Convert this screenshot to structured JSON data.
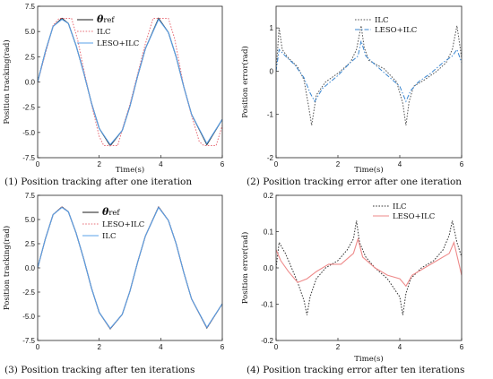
{
  "chart_data": [
    {
      "type": "line",
      "caption": "(1) Position tracking after one iteration",
      "xlabel": "Time(s)",
      "ylabel": "Position tracking(rad)",
      "xlim": [
        0,
        6
      ],
      "ylim": [
        -7.5,
        7.5
      ],
      "xticks": [
        "0",
        "2",
        "4",
        "6"
      ],
      "yticks": [
        "7.5",
        "5.0",
        "2.5",
        "0.0",
        "-2.5",
        "-5.0",
        "-7.5"
      ],
      "legend_position": "top-right",
      "series": [
        {
          "name": "θref",
          "color": "#1a1a1a",
          "style": "solid",
          "x": [
            0,
            0.25,
            0.5,
            0.79,
            1.0,
            1.25,
            1.5,
            1.75,
            2.0,
            2.36,
            2.75,
            3.0,
            3.25,
            3.5,
            3.93,
            4.25,
            4.5,
            4.75,
            5.0,
            5.5,
            6.0
          ],
          "y": [
            0,
            3.0,
            5.5,
            6.3,
            5.8,
            3.6,
            0.9,
            -2.1,
            -4.6,
            -6.3,
            -4.8,
            -2.4,
            0.6,
            3.3,
            6.3,
            4.9,
            2.5,
            -0.5,
            -3.2,
            -6.2,
            -3.7
          ]
        },
        {
          "name": "ILC",
          "color": "#e8707a",
          "style": "dotted",
          "x": [
            0,
            0.25,
            0.5,
            0.7,
            1.1,
            1.3,
            1.5,
            1.75,
            2.0,
            2.15,
            2.6,
            2.8,
            3.0,
            3.25,
            3.5,
            3.75,
            4.25,
            4.45,
            4.75,
            5.0,
            5.25,
            5.4,
            5.8,
            6.0
          ],
          "y": [
            0,
            2.8,
            5.6,
            6.3,
            6.3,
            4.2,
            1.2,
            -2.2,
            -5.4,
            -6.3,
            -6.3,
            -4.2,
            -2.2,
            0.8,
            3.8,
            6.3,
            6.3,
            4.3,
            -0.5,
            -3.3,
            -5.9,
            -6.3,
            -6.3,
            -4.3
          ]
        },
        {
          "name": "LESO+ILC",
          "color": "#5aa0e8",
          "style": "solid",
          "x": [
            0,
            0.25,
            0.5,
            0.79,
            1.0,
            1.25,
            1.5,
            1.75,
            2.0,
            2.36,
            2.75,
            3.0,
            3.25,
            3.5,
            3.93,
            4.25,
            4.5,
            4.75,
            5.0,
            5.5,
            6.0
          ],
          "y": [
            0,
            3.0,
            5.5,
            6.2,
            5.8,
            3.6,
            0.9,
            -2.1,
            -4.6,
            -6.2,
            -4.8,
            -2.4,
            0.6,
            3.3,
            6.2,
            4.9,
            2.5,
            -0.5,
            -3.2,
            -6.1,
            -3.7
          ]
        }
      ]
    },
    {
      "type": "line",
      "caption": "(2) Position tracking error after one iteration",
      "xlabel": "Time(s)",
      "ylabel": "Position error(rad)",
      "xlim": [
        0,
        6
      ],
      "ylim": [
        -2,
        1.5
      ],
      "xticks": [
        "0",
        "2",
        "4",
        "6"
      ],
      "yticks": [
        "1",
        "0",
        "-1",
        "-2"
      ],
      "legend_position": "top-right",
      "series": [
        {
          "name": "ILC",
          "color": "#555555",
          "style": "dotted",
          "x": [
            0,
            0.1,
            0.2,
            0.4,
            0.7,
            0.9,
            1.05,
            1.15,
            1.3,
            1.6,
            2.0,
            2.4,
            2.6,
            2.75,
            2.85,
            3.0,
            3.5,
            3.9,
            4.1,
            4.2,
            4.3,
            4.45,
            4.8,
            5.2,
            5.5,
            5.7,
            5.85,
            5.95,
            6.0
          ],
          "y": [
            0,
            1.0,
            0.5,
            0.3,
            0.1,
            -0.2,
            -0.8,
            -1.25,
            -0.55,
            -0.25,
            -0.05,
            0.2,
            0.5,
            1.05,
            0.55,
            0.25,
            0.05,
            -0.25,
            -0.75,
            -1.25,
            -0.7,
            -0.35,
            -0.2,
            0.0,
            0.2,
            0.5,
            1.05,
            0.55,
            0.3
          ]
        },
        {
          "name": "LESO+ILC",
          "color": "#3a86d0",
          "style": "dashdot",
          "x": [
            0,
            0.1,
            0.3,
            0.6,
            0.9,
            1.1,
            1.25,
            1.5,
            2.0,
            2.4,
            2.65,
            2.75,
            2.9,
            3.2,
            3.6,
            4.0,
            4.2,
            4.35,
            4.6,
            5.0,
            5.4,
            5.7,
            5.85,
            6.0
          ],
          "y": [
            0,
            0.5,
            0.35,
            0.15,
            -0.15,
            -0.5,
            -0.7,
            -0.4,
            -0.1,
            0.2,
            0.35,
            0.7,
            0.35,
            0.15,
            -0.1,
            -0.35,
            -0.7,
            -0.45,
            -0.25,
            -0.05,
            0.2,
            0.35,
            0.5,
            0.2
          ]
        }
      ]
    },
    {
      "type": "line",
      "caption": "(3) Position tracking after ten iterations",
      "xlabel": "",
      "ylabel": "Position tracking(rad)",
      "xlim": [
        0,
        6
      ],
      "ylim": [
        -7.5,
        7.5
      ],
      "xticks": [
        "0",
        "2",
        "4",
        "6"
      ],
      "yticks": [
        "7.5",
        "5.0",
        "2.5",
        "0.0",
        "-2.5",
        "-5.0",
        "-7.5"
      ],
      "legend_position": "center-right",
      "series": [
        {
          "name": "θref",
          "color": "#1a1a1a",
          "style": "solid",
          "x": [
            0,
            0.25,
            0.5,
            0.79,
            1.0,
            1.25,
            1.5,
            1.75,
            2.0,
            2.36,
            2.75,
            3.0,
            3.25,
            3.5,
            3.93,
            4.25,
            4.5,
            4.75,
            5.0,
            5.5,
            6.0
          ],
          "y": [
            0,
            3.0,
            5.5,
            6.3,
            5.8,
            3.6,
            0.9,
            -2.1,
            -4.6,
            -6.3,
            -4.8,
            -2.4,
            0.6,
            3.3,
            6.3,
            4.9,
            2.5,
            -0.5,
            -3.2,
            -6.2,
            -3.7
          ]
        },
        {
          "name": "LESO+ILC",
          "color": "#e8707a",
          "style": "dotted",
          "x": [
            0,
            0.25,
            0.5,
            0.79,
            1.0,
            1.25,
            1.5,
            1.75,
            2.0,
            2.36,
            2.75,
            3.0,
            3.25,
            3.5,
            3.93,
            4.25,
            4.5,
            4.75,
            5.0,
            5.5,
            6.0
          ],
          "y": [
            0,
            3.0,
            5.5,
            6.3,
            5.8,
            3.6,
            0.9,
            -2.1,
            -4.6,
            -6.3,
            -4.8,
            -2.4,
            0.6,
            3.3,
            6.3,
            4.9,
            2.5,
            -0.5,
            -3.2,
            -6.2,
            -3.7
          ]
        },
        {
          "name": "ILC",
          "color": "#5aa0e8",
          "style": "solid",
          "x": [
            0,
            0.25,
            0.5,
            0.79,
            1.0,
            1.25,
            1.5,
            1.75,
            2.0,
            2.36,
            2.75,
            3.0,
            3.25,
            3.5,
            3.93,
            4.25,
            4.5,
            4.75,
            5.0,
            5.5,
            6.0
          ],
          "y": [
            0,
            3.0,
            5.5,
            6.25,
            5.8,
            3.6,
            0.9,
            -2.1,
            -4.6,
            -6.25,
            -4.8,
            -2.4,
            0.6,
            3.3,
            6.25,
            4.9,
            2.5,
            -0.5,
            -3.2,
            -6.15,
            -3.7
          ]
        }
      ]
    },
    {
      "type": "line",
      "caption": "(4) Position tracking error after ten iterations",
      "xlabel": "Time(s)",
      "ylabel": "Position error(rad)",
      "xlim": [
        0,
        6
      ],
      "ylim": [
        -0.2,
        0.2
      ],
      "xticks": [
        "0",
        "2",
        "4",
        "6"
      ],
      "yticks": [
        "0.2",
        "0.1",
        "0.0",
        "-0.1",
        "-0.2"
      ],
      "legend_position": "top-right",
      "series": [
        {
          "name": "ILC",
          "color": "#333333",
          "style": "dotted",
          "x": [
            0,
            0.1,
            0.3,
            0.5,
            0.7,
            0.9,
            1.0,
            1.1,
            1.3,
            1.6,
            2.0,
            2.3,
            2.5,
            2.6,
            2.7,
            2.9,
            3.2,
            3.6,
            4.0,
            4.1,
            4.2,
            4.35,
            4.7,
            5.1,
            5.4,
            5.6,
            5.7,
            5.85,
            6.0
          ],
          "y": [
            0,
            0.07,
            0.04,
            0.0,
            -0.04,
            -0.09,
            -0.13,
            -0.08,
            -0.03,
            0.0,
            0.02,
            0.05,
            0.08,
            0.13,
            0.07,
            0.03,
            0.0,
            -0.03,
            -0.08,
            -0.13,
            -0.07,
            -0.03,
            0.0,
            0.02,
            0.05,
            0.09,
            0.13,
            0.07,
            0.03
          ]
        },
        {
          "name": "LESO+ILC",
          "color": "#ee8a8a",
          "style": "solid",
          "x": [
            0,
            0.15,
            0.4,
            0.7,
            1.0,
            1.3,
            1.7,
            2.1,
            2.5,
            2.65,
            2.8,
            3.2,
            3.6,
            4.0,
            4.2,
            4.4,
            4.8,
            5.2,
            5.6,
            5.75,
            6.0
          ],
          "y": [
            0.05,
            0.02,
            -0.01,
            -0.04,
            -0.03,
            -0.01,
            0.01,
            0.01,
            0.04,
            0.08,
            0.03,
            0.0,
            -0.02,
            -0.03,
            -0.05,
            -0.02,
            0.0,
            0.02,
            0.04,
            0.07,
            -0.02
          ]
        }
      ]
    }
  ]
}
